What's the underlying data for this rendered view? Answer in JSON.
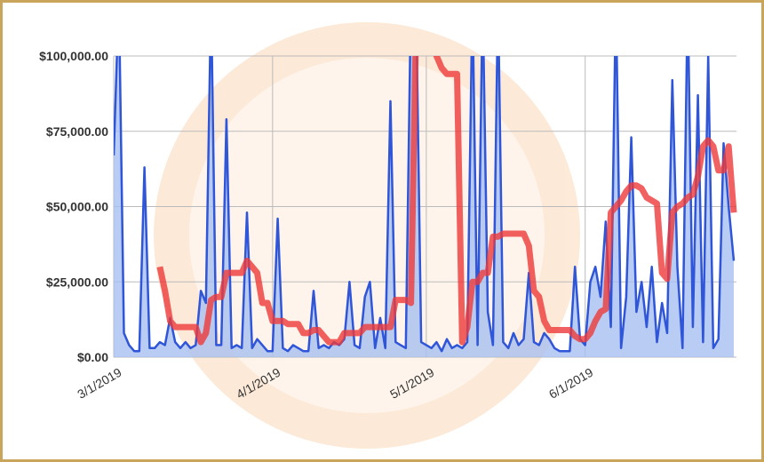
{
  "chart_data": {
    "type": "line",
    "categories": [
      "3/1/2019",
      null,
      null,
      null,
      null,
      null,
      null,
      null,
      null,
      null,
      null,
      null,
      null,
      null,
      null,
      null,
      null,
      null,
      null,
      null,
      null,
      null,
      null,
      null,
      null,
      null,
      null,
      null,
      null,
      null,
      null,
      "4/1/2019",
      null,
      null,
      null,
      null,
      null,
      null,
      null,
      null,
      null,
      null,
      null,
      null,
      null,
      null,
      null,
      null,
      null,
      null,
      null,
      null,
      null,
      null,
      null,
      null,
      null,
      null,
      null,
      null,
      null,
      "5/1/2019",
      null,
      null,
      null,
      null,
      null,
      null,
      null,
      null,
      null,
      null,
      null,
      null,
      null,
      null,
      null,
      null,
      null,
      null,
      null,
      null,
      null,
      null,
      null,
      null,
      null,
      null,
      null,
      null,
      null,
      null,
      "6/1/2019",
      null,
      null,
      null,
      null,
      null,
      null,
      null,
      null,
      null,
      null,
      null,
      null,
      null,
      null,
      null,
      null,
      null,
      null,
      null,
      null,
      null,
      null,
      null,
      null,
      null,
      null,
      null,
      null,
      null
    ],
    "series": [
      {
        "color": "#2f55d8",
        "fill": "#a8bff0",
        "values": [
          67000,
          120000,
          8000,
          4000,
          2000,
          2000,
          63000,
          3000,
          3000,
          5000,
          4000,
          13000,
          5000,
          3000,
          5000,
          3000,
          4000,
          22000,
          18000,
          120000,
          4000,
          4000,
          79000,
          3000,
          4000,
          3000,
          48000,
          3000,
          6000,
          4000,
          2000,
          2000,
          46000,
          3000,
          2000,
          4000,
          3000,
          2000,
          2000,
          22000,
          3000,
          4000,
          3000,
          5000,
          4000,
          6000,
          25000,
          4000,
          3000,
          20000,
          25000,
          3000,
          13000,
          3000,
          85000,
          5000,
          4000,
          3000,
          120000,
          120000,
          5000,
          4000,
          3000,
          5000,
          2000,
          6000,
          3000,
          4000,
          3000,
          5000,
          120000,
          4000,
          120000,
          15000,
          4000,
          120000,
          5000,
          3000,
          8000,
          4000,
          6000,
          28000,
          5000,
          4000,
          8000,
          6000,
          3000,
          2000,
          2000,
          2000,
          30000,
          6000,
          4000,
          25000,
          30000,
          20000,
          45000,
          10000,
          120000,
          3000,
          20000,
          73000,
          15000,
          25000,
          10000,
          30000,
          5000,
          18000,
          8000,
          92000,
          30000,
          3000,
          120000,
          10000,
          87000,
          5000,
          100000,
          3000,
          6000,
          71000,
          50000,
          32000
        ]
      },
      {
        "color": "#ee3a3a",
        "values": [
          null,
          null,
          null,
          null,
          null,
          null,
          null,
          null,
          null,
          30000,
          22000,
          12000,
          10000,
          10000,
          10000,
          10000,
          10000,
          5000,
          8000,
          19000,
          20000,
          20000,
          28000,
          28000,
          28000,
          28000,
          32000,
          30000,
          28000,
          18000,
          18000,
          12000,
          12000,
          12000,
          11000,
          11000,
          11000,
          8000,
          8000,
          9000,
          9000,
          7000,
          5000,
          5000,
          5000,
          8000,
          8000,
          8000,
          8000,
          10000,
          10000,
          10000,
          10000,
          10000,
          10000,
          19000,
          19000,
          19000,
          18000,
          110000,
          110000,
          110000,
          110000,
          100000,
          96000,
          94000,
          94000,
          94000,
          5000,
          10000,
          25000,
          25000,
          28000,
          28000,
          40000,
          40000,
          41000,
          41000,
          41000,
          41000,
          41000,
          37000,
          22000,
          20000,
          12000,
          9000,
          9000,
          9000,
          9000,
          9000,
          7000,
          6000,
          6000,
          8000,
          12000,
          15000,
          16000,
          48000,
          50000,
          52000,
          55000,
          57000,
          57000,
          56000,
          53000,
          52000,
          51000,
          28000,
          26000,
          48000,
          50000,
          51000,
          53000,
          54000,
          60000,
          70000,
          72000,
          70000,
          62000,
          62000,
          70000,
          48000
        ]
      }
    ],
    "ylim": [
      0,
      100000
    ],
    "yticks": [
      {
        "value": 0,
        "label": "$0.00"
      },
      {
        "value": 25000,
        "label": "$25,000.00"
      },
      {
        "value": 50000,
        "label": "$50,000.00"
      },
      {
        "value": 75000,
        "label": "$75,000.00"
      },
      {
        "value": 100000,
        "label": "$100,000.00"
      }
    ],
    "grid": true
  }
}
